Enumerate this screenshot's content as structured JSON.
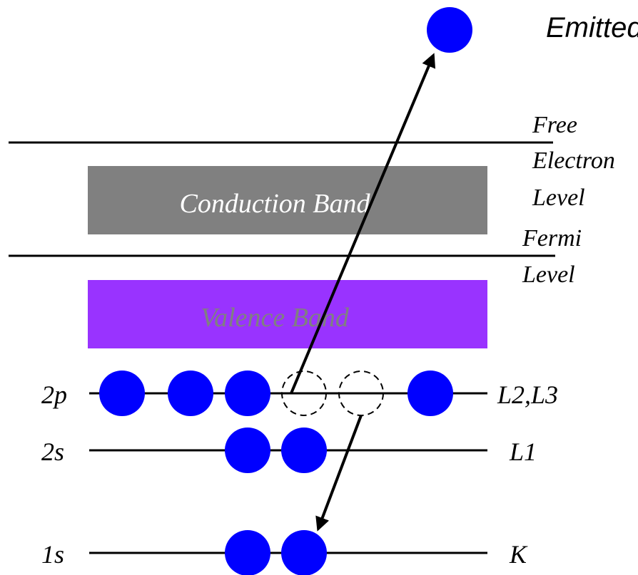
{
  "title": "Emitted",
  "energy_levels": {
    "free_electron_level": [
      "Free",
      "Electron",
      "Level"
    ],
    "fermi_level": [
      "Fermi",
      "Level"
    ]
  },
  "bands": {
    "conduction": {
      "label": "Conduction Band",
      "fill": "#808080",
      "text_color": "#ffffff"
    },
    "valence": {
      "label": "Valence Band",
      "fill": "#9933ff",
      "text_color": "#808080"
    }
  },
  "orbitals": [
    {
      "id": "2p",
      "label": "2p",
      "shell": "L2,L3"
    },
    {
      "id": "2s",
      "label": "2s",
      "shell": "L1"
    },
    {
      "id": "1s",
      "label": "1s",
      "shell": "K"
    }
  ],
  "colors": {
    "electron": "#0000ff",
    "line": "#000000",
    "vacancy_outline": "#000000"
  }
}
